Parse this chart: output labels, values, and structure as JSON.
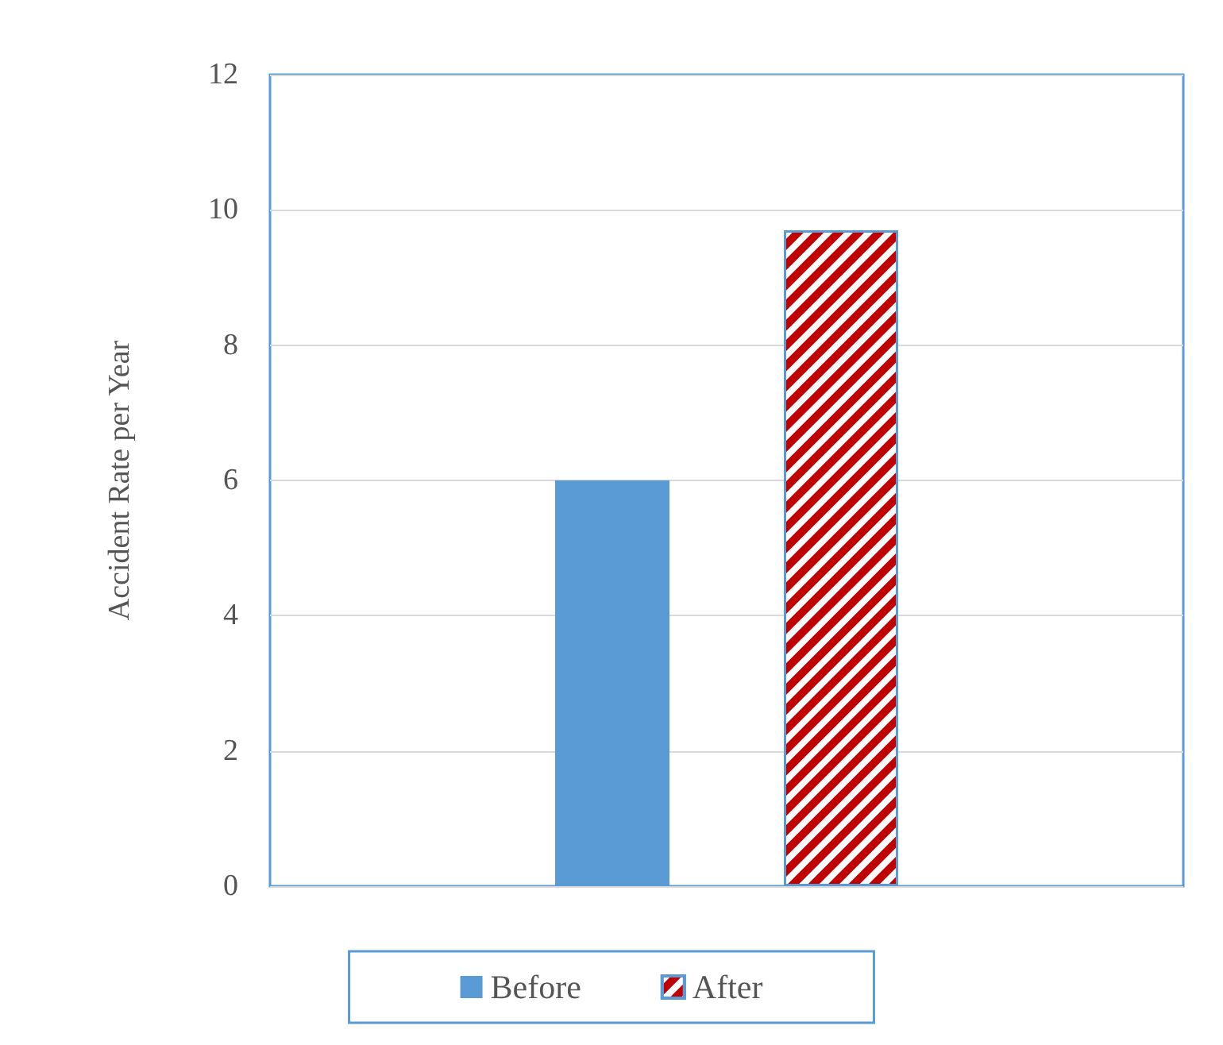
{
  "chart_data": {
    "type": "bar",
    "ylabel": "Accident Rate per Year",
    "categories": [
      null
    ],
    "series": [
      {
        "name": "Before",
        "color": "#5b9bd5",
        "values": [
          6
        ]
      },
      {
        "name": "After",
        "color": "#c00000",
        "values": [
          9.7
        ]
      }
    ],
    "ylim": [
      0,
      12
    ],
    "yticks": [
      0,
      2,
      4,
      6,
      8,
      10,
      12
    ],
    "grid": "y",
    "legend": "bottom"
  }
}
